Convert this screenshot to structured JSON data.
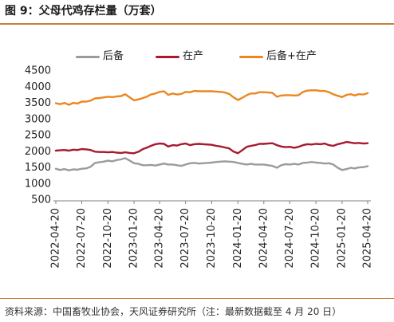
{
  "footer": {
    "source": "资料来源：中国畜牧业协会，天风证券研究所（注：最新数据截至 4 月 20 日）"
  },
  "theme": {
    "rule_color": "#C8813A",
    "axis_color": "#808080"
  },
  "chart_data": {
    "type": "line",
    "title": "图 9：父母代鸡存栏量（万套）",
    "ylim": [
      500,
      4500
    ],
    "y_ticks": [
      4500,
      4000,
      3500,
      3000,
      2500,
      2000,
      1500,
      1000,
      500
    ],
    "x_range": [
      "2022-04-20",
      "2025-04-20"
    ],
    "x_tick_labels": [
      "2022-04-20",
      "2022-07-20",
      "2022-10-20",
      "2023-01-20",
      "2023-04-20",
      "2023-07-20",
      "2023-10-20",
      "2024-01-20",
      "2024-04-20",
      "2024-07-20",
      "2024-10-20",
      "2025-01-20",
      "2025-04-20"
    ],
    "grid": false,
    "legend_position": "top",
    "x": [
      "2022-04-20",
      "2022-05-05",
      "2022-05-20",
      "2022-06-05",
      "2022-06-20",
      "2022-07-05",
      "2022-07-20",
      "2022-08-05",
      "2022-08-20",
      "2022-09-05",
      "2022-09-20",
      "2022-10-05",
      "2022-10-20",
      "2022-11-05",
      "2022-11-20",
      "2022-12-05",
      "2022-12-20",
      "2023-01-05",
      "2023-01-20",
      "2023-02-05",
      "2023-02-20",
      "2023-03-05",
      "2023-03-20",
      "2023-04-05",
      "2023-04-20",
      "2023-05-05",
      "2023-05-20",
      "2023-06-05",
      "2023-06-20",
      "2023-07-05",
      "2023-07-20",
      "2023-08-05",
      "2023-08-20",
      "2023-09-05",
      "2023-09-20",
      "2023-10-05",
      "2023-10-20",
      "2023-11-05",
      "2023-11-20",
      "2023-12-05",
      "2023-12-20",
      "2024-01-05",
      "2024-01-20",
      "2024-02-05",
      "2024-02-20",
      "2024-03-05",
      "2024-03-20",
      "2024-04-05",
      "2024-04-20",
      "2024-05-05",
      "2024-05-20",
      "2024-06-05",
      "2024-06-20",
      "2024-07-05",
      "2024-07-20",
      "2024-08-05",
      "2024-08-20",
      "2024-09-05",
      "2024-09-20",
      "2024-10-05",
      "2024-10-20",
      "2024-11-05",
      "2024-11-20",
      "2024-12-05",
      "2024-12-20",
      "2025-01-05",
      "2025-01-20",
      "2025-02-05",
      "2025-02-20",
      "2025-03-05",
      "2025-03-20",
      "2025-04-05",
      "2025-04-20"
    ],
    "series": [
      {
        "name": "后备",
        "color": "#9B9B9B",
        "values": [
          1470,
          1430,
          1460,
          1420,
          1450,
          1440,
          1470,
          1480,
          1530,
          1650,
          1670,
          1690,
          1720,
          1700,
          1740,
          1760,
          1800,
          1720,
          1640,
          1620,
          1580,
          1580,
          1590,
          1570,
          1600,
          1630,
          1600,
          1600,
          1580,
          1560,
          1600,
          1640,
          1650,
          1630,
          1640,
          1650,
          1660,
          1680,
          1690,
          1700,
          1690,
          1680,
          1650,
          1620,
          1600,
          1620,
          1600,
          1600,
          1600,
          1580,
          1560,
          1500,
          1580,
          1610,
          1600,
          1620,
          1600,
          1650,
          1660,
          1680,
          1660,
          1650,
          1630,
          1640,
          1600,
          1500,
          1430,
          1460,
          1500,
          1480,
          1510,
          1520,
          1550
        ]
      },
      {
        "name": "在产",
        "color": "#A6192E",
        "values": [
          2030,
          2040,
          2050,
          2030,
          2060,
          2050,
          2080,
          2070,
          2050,
          2000,
          1990,
          1990,
          1980,
          1990,
          1970,
          1960,
          1980,
          1960,
          1950,
          2000,
          2080,
          2120,
          2180,
          2230,
          2250,
          2240,
          2160,
          2200,
          2190,
          2230,
          2250,
          2200,
          2230,
          2240,
          2230,
          2220,
          2210,
          2180,
          2160,
          2130,
          2100,
          2000,
          1950,
          2050,
          2150,
          2180,
          2200,
          2240,
          2240,
          2250,
          2260,
          2200,
          2160,
          2140,
          2150,
          2120,
          2150,
          2200,
          2230,
          2220,
          2240,
          2230,
          2250,
          2200,
          2180,
          2230,
          2260,
          2300,
          2280,
          2260,
          2270,
          2250,
          2260
        ]
      },
      {
        "name": "后备+在产",
        "color": "#EC8620",
        "values": [
          3500,
          3470,
          3510,
          3450,
          3510,
          3490,
          3550,
          3550,
          3580,
          3650,
          3660,
          3680,
          3700,
          3690,
          3710,
          3720,
          3780,
          3680,
          3590,
          3620,
          3660,
          3700,
          3770,
          3800,
          3850,
          3870,
          3760,
          3800,
          3770,
          3790,
          3850,
          3840,
          3880,
          3870,
          3870,
          3870,
          3870,
          3860,
          3850,
          3830,
          3790,
          3680,
          3600,
          3670,
          3750,
          3800,
          3800,
          3840,
          3840,
          3830,
          3820,
          3700,
          3740,
          3750,
          3750,
          3740,
          3750,
          3850,
          3890,
          3900,
          3900,
          3880,
          3880,
          3840,
          3780,
          3730,
          3690,
          3760,
          3780,
          3740,
          3780,
          3770,
          3810
        ]
      }
    ]
  }
}
